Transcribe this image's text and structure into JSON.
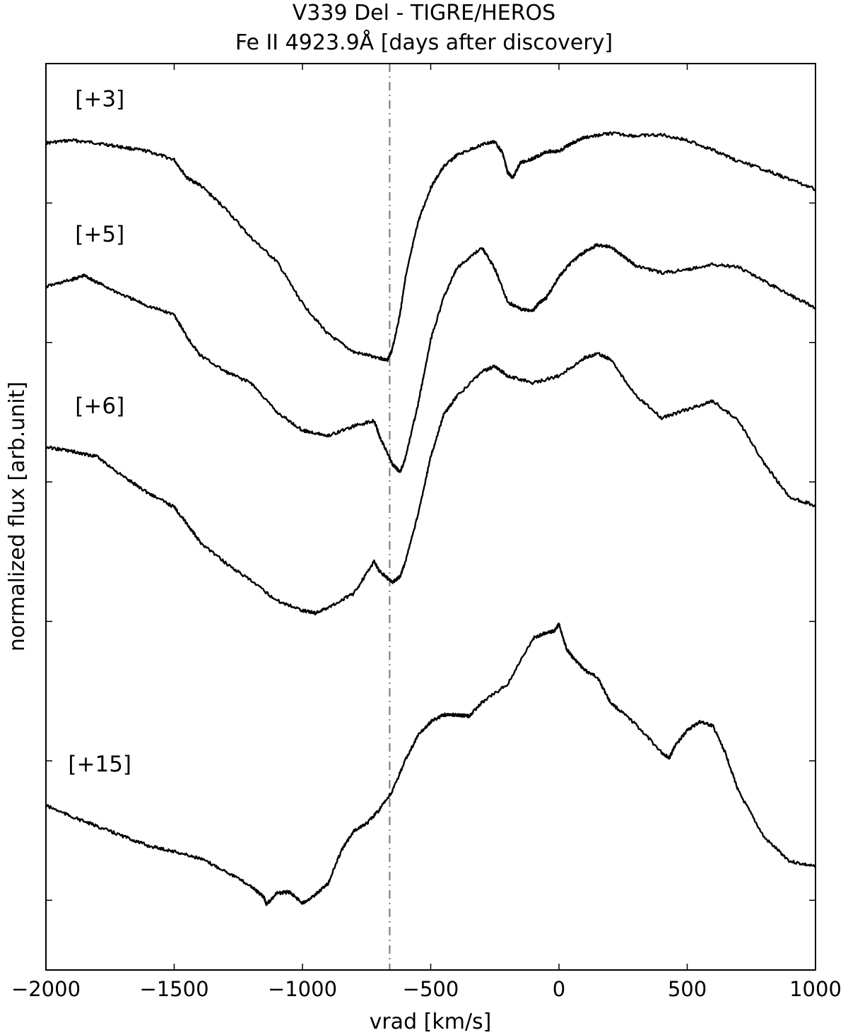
{
  "chart_data": {
    "type": "line",
    "title": "V339 Del - TIGRE/HEROS",
    "subtitle": "Fe II 4923.9Å [days after discovery]",
    "xlabel": "vrad [km/s]",
    "ylabel": "normalized flux [arb.unit]",
    "xlim": [
      -2000,
      1000
    ],
    "ylim": [
      0,
      6.5
    ],
    "x_ticks": [
      -2000,
      -1500,
      -1000,
      -500,
      0,
      500,
      1000
    ],
    "x_tick_labels": [
      "−2000",
      "−1500",
      "−1000",
      "−500",
      "0",
      "500",
      "1000"
    ],
    "y_ticks": [
      0.5,
      1.5,
      2.5,
      3.5,
      4.5,
      5.5
    ],
    "y_tick_labels_shown": false,
    "grid": false,
    "reference_line": {
      "x": -660,
      "style": "dash-dot",
      "color": "#808080"
    },
    "line_color": "#000000",
    "series": [
      {
        "label": "[+3]",
        "x": [
          -2000,
          -1900,
          -1800,
          -1700,
          -1600,
          -1500,
          -1450,
          -1400,
          -1300,
          -1200,
          -1100,
          -1000,
          -900,
          -800,
          -700,
          -670,
          -650,
          -620,
          -600,
          -550,
          -500,
          -450,
          -400,
          -300,
          -250,
          -220,
          -200,
          -180,
          -150,
          -100,
          -50,
          0,
          50,
          100,
          200,
          300,
          400,
          500,
          600,
          700,
          800,
          900,
          1000
        ],
        "y": [
          5.93,
          5.95,
          5.93,
          5.9,
          5.87,
          5.81,
          5.68,
          5.63,
          5.46,
          5.25,
          5.08,
          4.78,
          4.56,
          4.43,
          4.39,
          4.37,
          4.45,
          4.7,
          4.95,
          5.36,
          5.61,
          5.76,
          5.84,
          5.92,
          5.94,
          5.86,
          5.72,
          5.68,
          5.79,
          5.82,
          5.87,
          5.87,
          5.93,
          5.97,
          6.0,
          5.98,
          5.99,
          5.95,
          5.88,
          5.8,
          5.74,
          5.67,
          5.6
        ]
      },
      {
        "label": "[+5]",
        "x": [
          -2000,
          -1900,
          -1850,
          -1800,
          -1700,
          -1600,
          -1500,
          -1450,
          -1400,
          -1300,
          -1200,
          -1100,
          -1000,
          -950,
          -900,
          -800,
          -720,
          -700,
          -650,
          -620,
          -600,
          -550,
          -500,
          -450,
          -400,
          -300,
          -250,
          -200,
          -150,
          -100,
          -80,
          -50,
          0,
          50,
          100,
          150,
          200,
          250,
          300,
          400,
          500,
          600,
          700,
          800,
          900,
          1000
        ],
        "y": [
          4.9,
          4.95,
          4.98,
          4.93,
          4.84,
          4.76,
          4.7,
          4.54,
          4.41,
          4.29,
          4.21,
          4.0,
          3.87,
          3.85,
          3.83,
          3.9,
          3.94,
          3.83,
          3.63,
          3.57,
          3.66,
          4.05,
          4.52,
          4.82,
          5.03,
          5.18,
          5.03,
          4.79,
          4.74,
          4.73,
          4.78,
          4.82,
          4.97,
          5.08,
          5.15,
          5.2,
          5.19,
          5.12,
          5.05,
          5.0,
          5.02,
          5.06,
          5.04,
          4.94,
          4.84,
          4.75
        ]
      },
      {
        "label": "[+6]",
        "x": [
          -2000,
          -1900,
          -1850,
          -1800,
          -1700,
          -1600,
          -1500,
          -1450,
          -1400,
          -1300,
          -1200,
          -1100,
          -1000,
          -950,
          -900,
          -800,
          -720,
          -700,
          -650,
          -620,
          -600,
          -550,
          -500,
          -450,
          -400,
          -300,
          -250,
          -200,
          -100,
          0,
          100,
          150,
          200,
          300,
          400,
          500,
          600,
          700,
          800,
          900,
          1000
        ],
        "y": [
          3.75,
          3.72,
          3.7,
          3.68,
          3.54,
          3.42,
          3.32,
          3.2,
          3.07,
          2.92,
          2.79,
          2.65,
          2.58,
          2.56,
          2.6,
          2.7,
          2.93,
          2.86,
          2.78,
          2.82,
          2.92,
          3.26,
          3.68,
          3.98,
          4.11,
          4.29,
          4.33,
          4.26,
          4.21,
          4.26,
          4.39,
          4.42,
          4.38,
          4.12,
          3.96,
          4.02,
          4.08,
          3.94,
          3.63,
          3.39,
          3.33
        ]
      },
      {
        "label": "[+15]",
        "x": [
          -2000,
          -1900,
          -1800,
          -1700,
          -1600,
          -1500,
          -1400,
          -1300,
          -1200,
          -1150,
          -1140,
          -1100,
          -1050,
          -1000,
          -950,
          -900,
          -850,
          -800,
          -750,
          -700,
          -650,
          -600,
          -550,
          -500,
          -450,
          -400,
          -350,
          -300,
          -200,
          -100,
          -50,
          -20,
          0,
          30,
          50,
          100,
          150,
          200,
          300,
          400,
          430,
          450,
          500,
          550,
          600,
          650,
          700,
          800,
          900,
          1000
        ],
        "y": [
          1.18,
          1.1,
          1.03,
          0.96,
          0.89,
          0.85,
          0.8,
          0.71,
          0.6,
          0.52,
          0.47,
          0.55,
          0.56,
          0.48,
          0.54,
          0.62,
          0.85,
          1.0,
          1.05,
          1.15,
          1.28,
          1.5,
          1.68,
          1.78,
          1.83,
          1.83,
          1.82,
          1.92,
          2.05,
          2.38,
          2.42,
          2.43,
          2.48,
          2.3,
          2.25,
          2.15,
          2.1,
          1.92,
          1.76,
          1.56,
          1.52,
          1.6,
          1.72,
          1.78,
          1.75,
          1.55,
          1.28,
          0.95,
          0.78,
          0.74
        ]
      }
    ]
  }
}
